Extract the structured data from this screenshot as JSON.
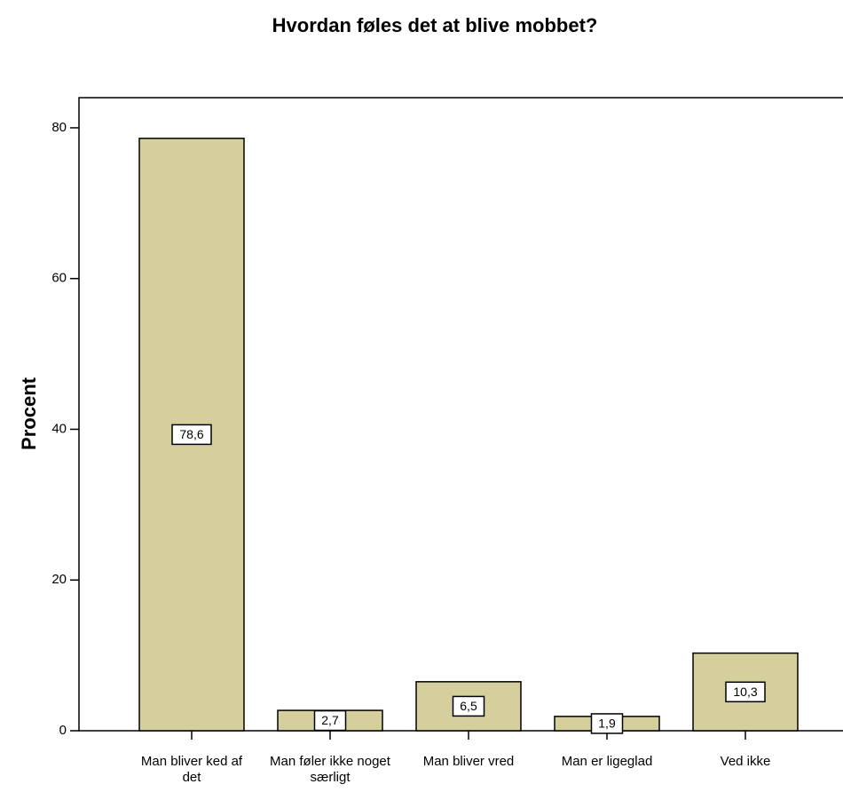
{
  "chart_data": {
    "type": "bar",
    "title": "Hvordan føles det at blive mobbet?",
    "y_label": "Procent",
    "categories": [
      "Man bliver ked af det",
      "Man føler ikke noget særligt",
      "Man bliver vred",
      "Man er ligeglad",
      "Ved ikke"
    ],
    "values": [
      78.6,
      2.7,
      6.5,
      1.9,
      10.3
    ],
    "value_labels": [
      "78,6",
      "2,7",
      "6,5",
      "1,9",
      "10,3"
    ],
    "color": "#d4cf9c",
    "ylim": [
      0,
      84
    ],
    "yticks": [
      0,
      20,
      40,
      60,
      80
    ]
  }
}
